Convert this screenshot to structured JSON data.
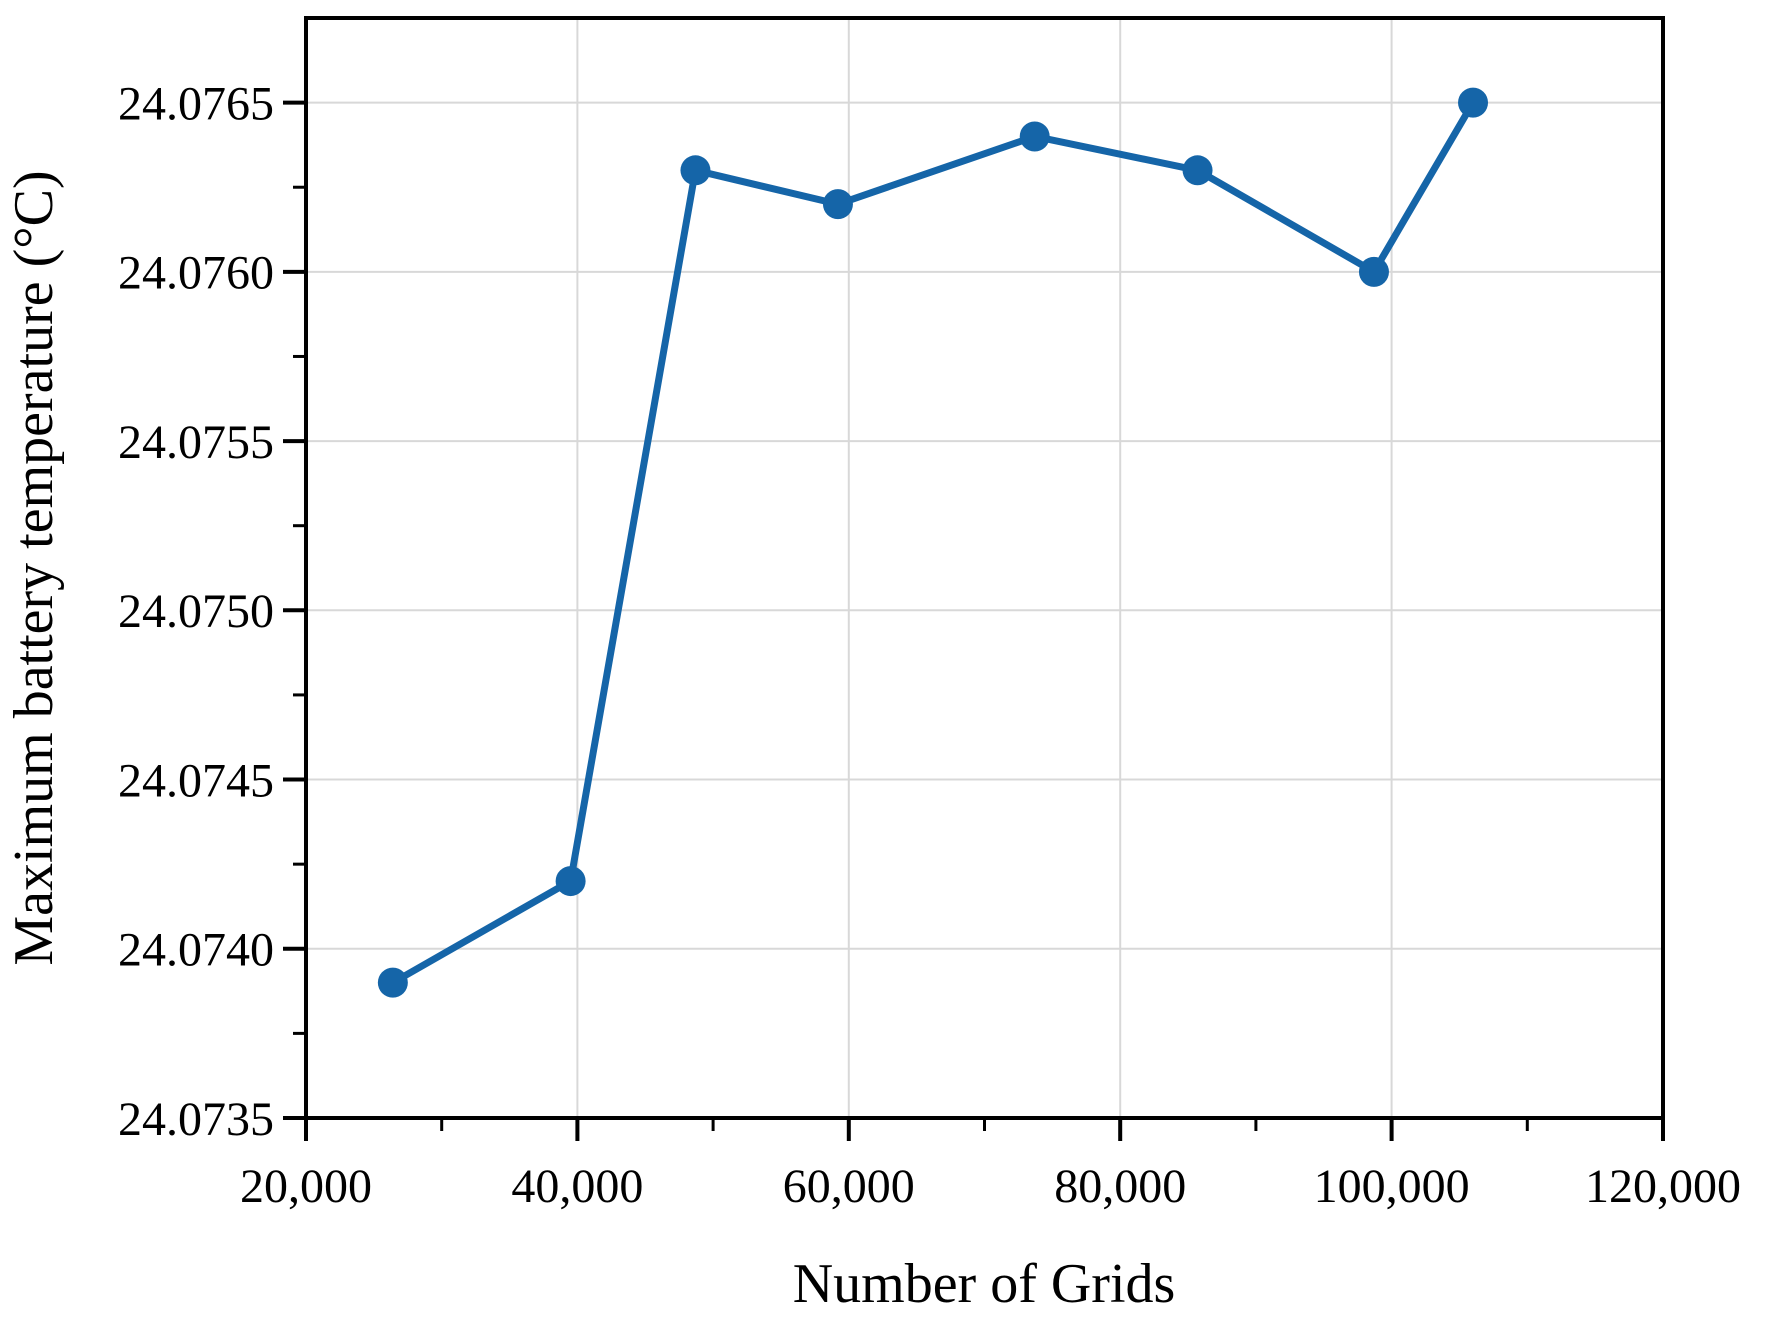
{
  "figure": {
    "background": "#ffffff"
  },
  "chart_data": {
    "type": "line",
    "title": "",
    "xlabel": "Number of Grids",
    "ylabel": "Maximum battery temperature (°C)",
    "series": [
      {
        "name": "Maximum battery temperature",
        "x": [
          26400,
          39500,
          48700,
          59200,
          73700,
          85700,
          98700,
          106000
        ],
        "y": [
          24.0739,
          24.0742,
          24.0763,
          24.0762,
          24.0764,
          24.0763,
          24.076,
          24.0765
        ]
      }
    ],
    "xlim": [
      20000,
      120000
    ],
    "ylim": [
      24.0735,
      24.07675
    ],
    "x_major_ticks": [
      20000,
      40000,
      60000,
      80000,
      100000,
      120000
    ],
    "x_tick_labels": [
      "20,000",
      "40,000",
      "60,000",
      "80,000",
      "100,000",
      "120,000"
    ],
    "x_minor_ticks": [
      30000,
      50000,
      70000,
      90000,
      110000
    ],
    "y_major_ticks": [
      24.0735,
      24.074,
      24.0745,
      24.075,
      24.0755,
      24.076,
      24.0765
    ],
    "y_tick_labels": [
      "24.0735",
      "24.0740",
      "24.0745",
      "24.0750",
      "24.0755",
      "24.0760",
      "24.0765"
    ],
    "y_minor_ticks": [
      24.07375,
      24.07425,
      24.07475,
      24.07525,
      24.07575,
      24.07625
    ],
    "grid": true,
    "legend_position": "none",
    "style": {
      "line_color": "#1565a8",
      "marker": "circle",
      "grid_color": "#d8d8d8",
      "axis_color": "#000000",
      "background": "#ffffff"
    }
  }
}
